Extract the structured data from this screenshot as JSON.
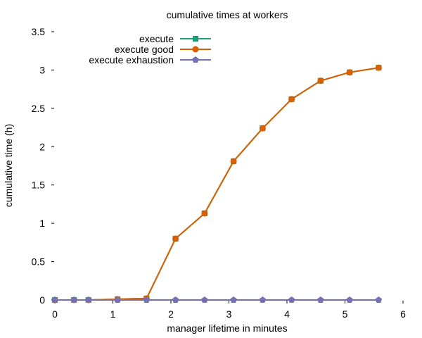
{
  "chart_data": {
    "type": "line",
    "title": "cumulative times at workers",
    "xlabel": "manager lifetime in minutes",
    "ylabel": "cumulative time (h)",
    "xlim": [
      0,
      6
    ],
    "ylim": [
      0,
      3.5
    ],
    "xticks": [
      0,
      1,
      2,
      3,
      4,
      5,
      6
    ],
    "yticks": [
      0,
      0.5,
      1,
      1.5,
      2,
      2.5,
      3,
      3.5
    ],
    "x_tick_labels": [
      "0",
      "1",
      "2",
      "3",
      "4",
      "5",
      "6"
    ],
    "y_tick_labels": [
      "0",
      "0.5",
      "1",
      "1.5",
      "2",
      "2.5",
      "3",
      "3.5"
    ],
    "grid": false,
    "legend_position": "top-left",
    "series": [
      {
        "name": "execute",
        "color": "#1b9e77",
        "marker": "square",
        "x": [
          0.0,
          0.33,
          0.58,
          1.08,
          1.58,
          2.08,
          2.58,
          3.08,
          3.58,
          4.08,
          4.58,
          5.08,
          5.58
        ],
        "y": [
          0.0,
          0.0,
          0.0,
          0.01,
          0.02,
          0.8,
          1.13,
          1.81,
          2.24,
          2.62,
          2.86,
          2.97,
          3.03
        ]
      },
      {
        "name": "execute good",
        "color": "#d95f02",
        "marker": "circle",
        "x": [
          0.0,
          0.33,
          0.58,
          1.08,
          1.58,
          2.08,
          2.58,
          3.08,
          3.58,
          4.08,
          4.58,
          5.08,
          5.58
        ],
        "y": [
          0.0,
          0.0,
          0.0,
          0.01,
          0.02,
          0.8,
          1.13,
          1.81,
          2.24,
          2.62,
          2.86,
          2.97,
          3.03
        ]
      },
      {
        "name": "execute exhaustion",
        "color": "#7570b3",
        "marker": "pentagon",
        "x": [
          0.0,
          0.33,
          0.58,
          1.08,
          1.58,
          2.08,
          2.58,
          3.08,
          3.58,
          4.08,
          4.58,
          5.08,
          5.58
        ],
        "y": [
          0.0,
          0.0,
          0.0,
          0.0,
          0.0,
          0.0,
          0.0,
          0.0,
          0.0,
          0.0,
          0.0,
          0.0,
          0.0
        ]
      }
    ]
  }
}
